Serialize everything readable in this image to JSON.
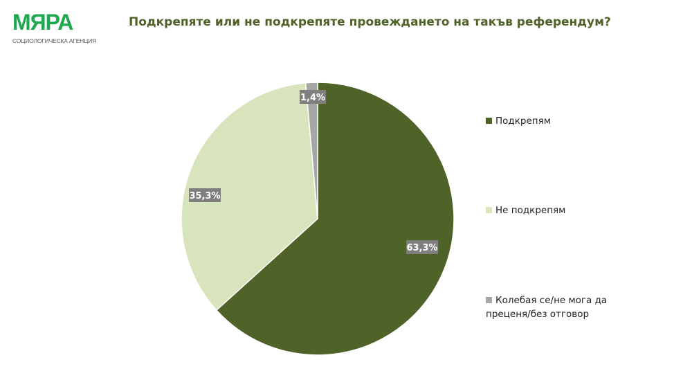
{
  "logo": {
    "name": "МЯРА",
    "tagline": "СОЦИОЛОГИЧЕСКА АГЕНЦИЯ"
  },
  "chart_data": {
    "type": "pie",
    "title": "Подкрепяте или не подкрепяте провеждането на такъв референдум?",
    "start": "top",
    "direction": "clockwise",
    "slices": [
      {
        "name": "Подкрепям",
        "value": 63.3,
        "label": "63,3%",
        "color": "#4f6228"
      },
      {
        "name": "Не подкрепям",
        "value": 35.3,
        "label": "35,3%",
        "color": "#d8e4bc"
      },
      {
        "name": "Колебая се/не мога да преценя/без отговор",
        "value": 1.4,
        "label": "1,4%",
        "color": "#a6a6a6"
      }
    ],
    "legend": "right",
    "label_box_color": "#7f7f7f"
  }
}
